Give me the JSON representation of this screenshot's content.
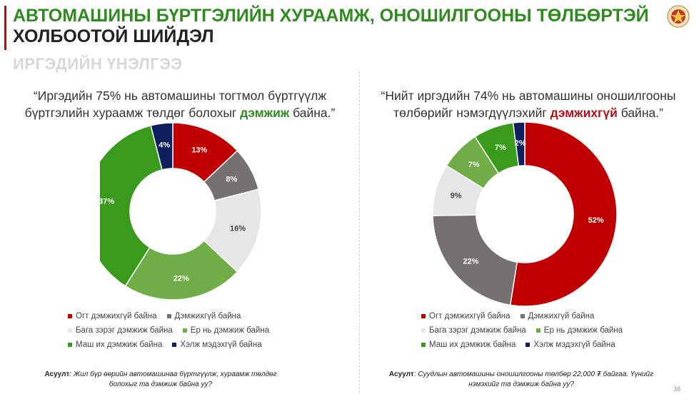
{
  "header": {
    "title_line1": "АВТОМАШИНЫ БҮРТГЭЛИЙН ХУРААМЖ, ОНОШИЛГООНЫ ТӨЛБӨРТЭЙ",
    "title_line2": "ХОЛБООТОЙ ШИЙДЭЛ",
    "subtitle": "ИРГЭДИЙН ҮНЭЛГЭЭ"
  },
  "left": {
    "quote_pre": "“Иргэдийн 75% нь автомашины тогтмол бүртгүүлж бүртгэлийн хураамж төлдөг болохыг ",
    "quote_em": "дэмжиж",
    "quote_post": " байна.”",
    "question_label": "Асуулт",
    "question_text": ": Жил бүр өөрийн автомашинаа бүртгүүлж, хураамж төлдөг болохыг та дэмжиж байна уу?"
  },
  "right": {
    "quote_pre": "“Нийт иргэдийн 74% нь автомашины оношилгооны төлбөрийг нэмэгдүүлэхийг ",
    "quote_em": "дэмжихгүй",
    "quote_post": " байна.”",
    "question_label": "Асуулт",
    "question_text": ": Суудлын автомашины оношилгооны төлбөр 22,000 ₮ байгаа. Үүнийг нэмэхийг та дэмжиж байна уу?"
  },
  "legend": {
    "items": [
      "Огт дэмжихгүй байна",
      "Дэмжихгүй байна",
      "Бага зэрэг дэмжиж байна",
      "Ер нь дэмжиж байна",
      "Маш их дэмжиж байна",
      "Хэлж мэдэхгүй байна"
    ]
  },
  "colors": [
    "#c00000",
    "#767171",
    "#e7e6e6",
    "#70ad47",
    "#3a9a1c",
    "#0d1f5c"
  ],
  "label_colors": [
    "#ffffff",
    "#ffffff",
    "#444444",
    "#ffffff",
    "#ffffff",
    "#ffffff"
  ],
  "page_number": "38",
  "chart_data": [
    {
      "type": "pie",
      "categories": [
        "Огт дэмжихгүй байна",
        "Дэмжихгүй байна",
        "Бага зэрэг дэмжиж байна",
        "Ер нь дэмжиж байна",
        "Маш их дэмжиж байна",
        "Хэлж мэдэхгүй байна"
      ],
      "values": [
        13,
        8,
        16,
        22,
        37,
        4
      ],
      "labels": [
        "13%",
        "8%",
        "16%",
        "22%",
        "37%",
        "4%"
      ]
    },
    {
      "type": "pie",
      "categories": [
        "Огт дэмжихгүй байна",
        "Дэмжихгүй байна",
        "Бага зэрэг дэмжиж байна",
        "Ер нь дэмжиж байна",
        "Маш их дэмжиж байна",
        "Хэлж мэдэхгүй байна"
      ],
      "values": [
        52,
        22,
        9,
        7,
        7,
        2
      ],
      "labels": [
        "52%",
        "22%",
        "9%",
        "7%",
        "7%",
        "2%"
      ]
    }
  ]
}
